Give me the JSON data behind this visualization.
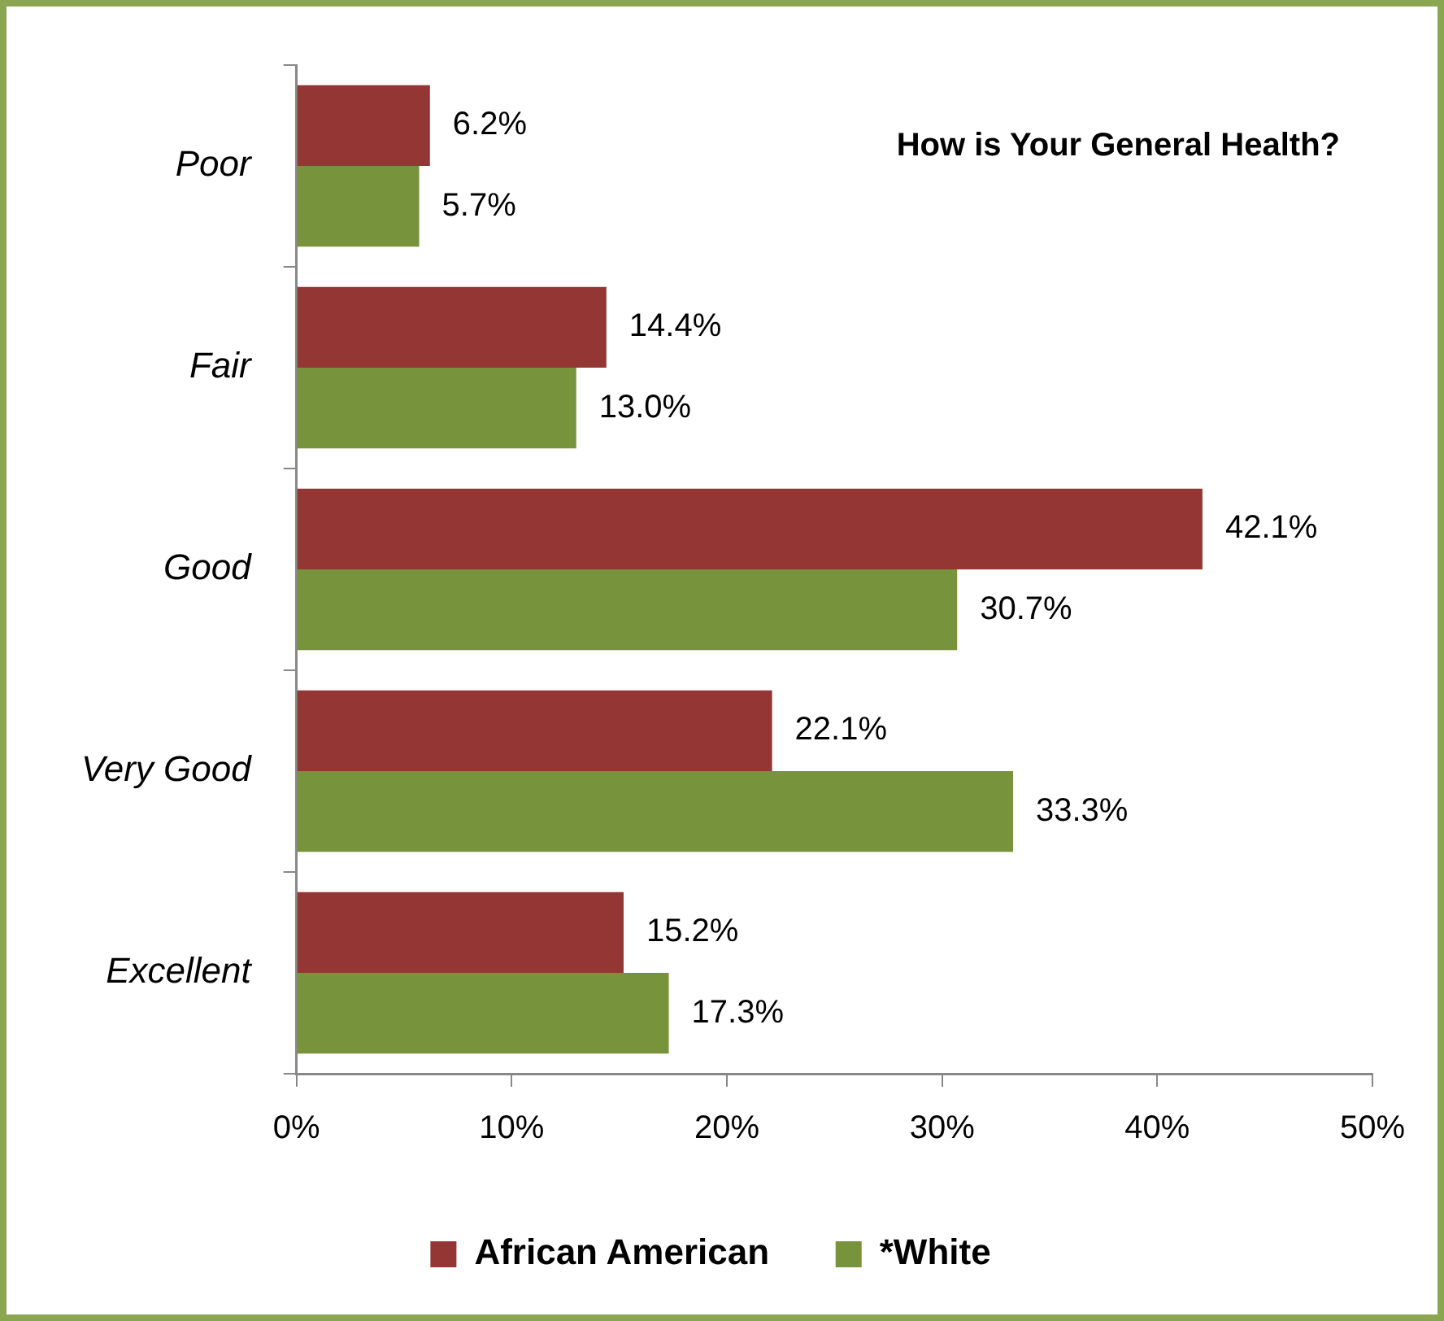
{
  "chart_data": {
    "type": "bar",
    "orientation": "horizontal",
    "title": "How is Your General Health?",
    "categories": [
      "Poor",
      "Fair",
      "Good",
      "Very Good",
      "Excellent"
    ],
    "series": [
      {
        "name": "African American",
        "color": "#943634",
        "values": [
          6.2,
          14.4,
          42.1,
          22.1,
          15.2
        ],
        "value_labels": [
          "6.2%",
          "14.4%",
          "42.1%",
          "22.1%",
          "15.2%"
        ]
      },
      {
        "name": "*White",
        "color": "#77933c",
        "values": [
          5.7,
          13.0,
          30.7,
          33.3,
          17.3
        ],
        "value_labels": [
          "5.7%",
          "13.0%",
          "30.7%",
          "33.3%",
          "17.3%"
        ]
      }
    ],
    "xlim": [
      0,
      50
    ],
    "xticks": [
      {
        "value": 0,
        "label": "0%"
      },
      {
        "value": 10,
        "label": "10%"
      },
      {
        "value": 20,
        "label": "20%"
      },
      {
        "value": 30,
        "label": "30%"
      },
      {
        "value": 40,
        "label": "40%"
      },
      {
        "value": 50,
        "label": "50%"
      }
    ],
    "grid": false,
    "legend": "bottom"
  }
}
